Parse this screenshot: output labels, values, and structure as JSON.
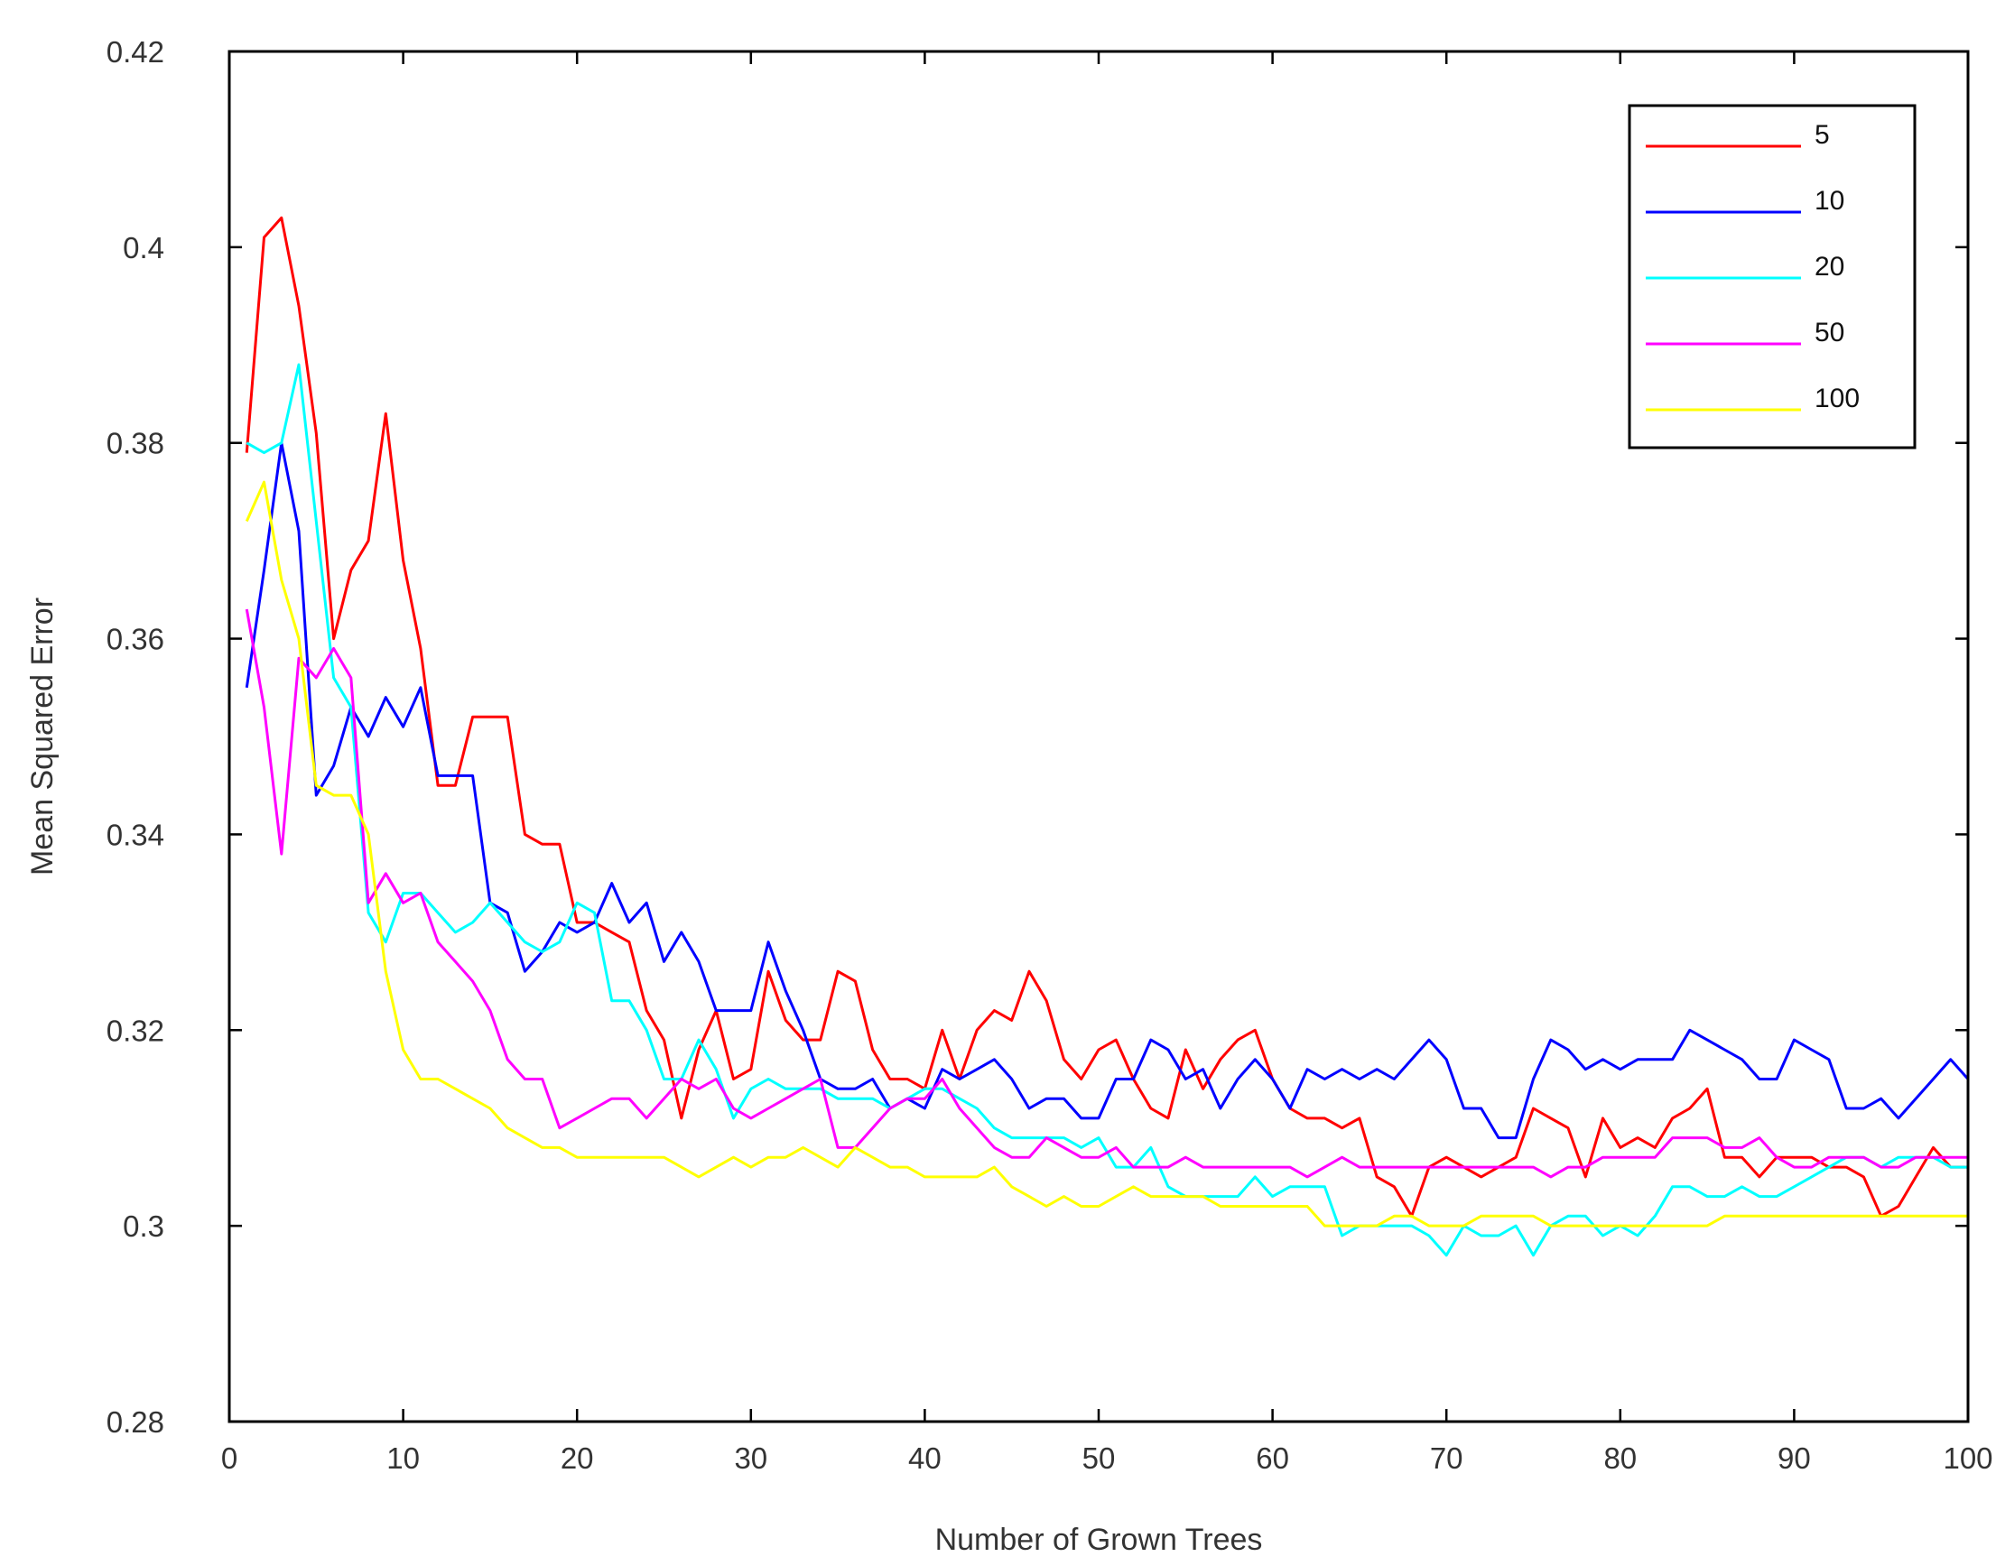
{
  "chart_data": {
    "type": "line",
    "title": "",
    "xlabel": "Number of Grown Trees",
    "ylabel": "Mean Squared Error",
    "xlim": [
      0,
      100
    ],
    "ylim": [
      0.28,
      0.42
    ],
    "x_ticks": [
      0,
      10,
      20,
      30,
      40,
      50,
      60,
      70,
      80,
      90,
      100
    ],
    "x_tick_labels": [
      "0",
      "10",
      "20",
      "30",
      "40",
      "50",
      "60",
      "70",
      "80",
      "90",
      "100"
    ],
    "y_ticks": [
      0.28,
      0.3,
      0.32,
      0.34,
      0.36,
      0.38,
      0.4,
      0.42
    ],
    "y_tick_labels": [
      "0.28",
      "0.3",
      "0.32",
      "0.34",
      "0.36",
      "0.38",
      "0.4",
      "0.42"
    ],
    "grid": false,
    "legend_position": "top-right",
    "x": [
      1,
      2,
      3,
      4,
      5,
      6,
      7,
      8,
      9,
      10,
      11,
      12,
      13,
      14,
      15,
      16,
      17,
      18,
      19,
      20,
      21,
      22,
      23,
      24,
      25,
      26,
      27,
      28,
      29,
      30,
      31,
      32,
      33,
      34,
      35,
      36,
      37,
      38,
      39,
      40,
      41,
      42,
      43,
      44,
      45,
      46,
      47,
      48,
      49,
      50,
      51,
      52,
      53,
      54,
      55,
      56,
      57,
      58,
      59,
      60,
      61,
      62,
      63,
      64,
      65,
      66,
      67,
      68,
      69,
      70,
      71,
      72,
      73,
      74,
      75,
      76,
      77,
      78,
      79,
      80,
      81,
      82,
      83,
      84,
      85,
      86,
      87,
      88,
      89,
      90,
      91,
      92,
      93,
      94,
      95,
      96,
      97,
      98,
      99,
      100
    ],
    "series": [
      {
        "name": "5",
        "color": "#ff0000",
        "values": [
          0.379,
          0.401,
          0.403,
          0.394,
          0.381,
          0.36,
          0.367,
          0.37,
          0.383,
          0.368,
          0.359,
          0.345,
          0.345,
          0.352,
          0.352,
          0.352,
          0.34,
          0.339,
          0.339,
          0.331,
          0.331,
          0.33,
          0.329,
          0.322,
          0.319,
          0.311,
          0.318,
          0.322,
          0.315,
          0.316,
          0.326,
          0.321,
          0.319,
          0.319,
          0.326,
          0.325,
          0.318,
          0.315,
          0.315,
          0.314,
          0.32,
          0.315,
          0.32,
          0.322,
          0.321,
          0.326,
          0.323,
          0.317,
          0.315,
          0.318,
          0.319,
          0.315,
          0.312,
          0.311,
          0.318,
          0.314,
          0.317,
          0.319,
          0.32,
          0.315,
          0.312,
          0.311,
          0.311,
          0.31,
          0.311,
          0.305,
          0.304,
          0.301,
          0.306,
          0.307,
          0.306,
          0.305,
          0.306,
          0.307,
          0.312,
          0.311,
          0.31,
          0.305,
          0.311,
          0.308,
          0.309,
          0.308,
          0.311,
          0.312,
          0.314,
          0.307,
          0.307,
          0.305,
          0.307,
          0.307,
          0.307,
          0.306,
          0.306,
          0.305,
          0.301,
          0.302,
          0.305,
          0.308,
          0.306,
          0.306
        ]
      },
      {
        "name": "10",
        "color": "#0000ff",
        "values": [
          0.355,
          0.367,
          0.38,
          0.371,
          0.344,
          0.347,
          0.353,
          0.35,
          0.354,
          0.351,
          0.355,
          0.346,
          0.346,
          0.346,
          0.333,
          0.332,
          0.326,
          0.328,
          0.331,
          0.33,
          0.331,
          0.335,
          0.331,
          0.333,
          0.327,
          0.33,
          0.327,
          0.322,
          0.322,
          0.322,
          0.329,
          0.324,
          0.32,
          0.315,
          0.314,
          0.314,
          0.315,
          0.312,
          0.313,
          0.312,
          0.316,
          0.315,
          0.316,
          0.317,
          0.315,
          0.312,
          0.313,
          0.313,
          0.311,
          0.311,
          0.315,
          0.315,
          0.319,
          0.318,
          0.315,
          0.316,
          0.312,
          0.315,
          0.317,
          0.315,
          0.312,
          0.316,
          0.315,
          0.316,
          0.315,
          0.316,
          0.315,
          0.317,
          0.319,
          0.317,
          0.312,
          0.312,
          0.309,
          0.309,
          0.315,
          0.319,
          0.318,
          0.316,
          0.317,
          0.316,
          0.317,
          0.317,
          0.317,
          0.32,
          0.319,
          0.318,
          0.317,
          0.315,
          0.315,
          0.319,
          0.318,
          0.317,
          0.312,
          0.312,
          0.313,
          0.311,
          0.313,
          0.315,
          0.317,
          0.315
        ]
      },
      {
        "name": "20",
        "color": "#00ffff",
        "values": [
          0.38,
          0.379,
          0.38,
          0.388,
          0.372,
          0.356,
          0.353,
          0.332,
          0.329,
          0.334,
          0.334,
          0.332,
          0.33,
          0.331,
          0.333,
          0.331,
          0.329,
          0.328,
          0.329,
          0.333,
          0.332,
          0.323,
          0.323,
          0.32,
          0.315,
          0.315,
          0.319,
          0.316,
          0.311,
          0.314,
          0.315,
          0.314,
          0.314,
          0.314,
          0.313,
          0.313,
          0.313,
          0.312,
          0.313,
          0.314,
          0.314,
          0.313,
          0.312,
          0.31,
          0.309,
          0.309,
          0.309,
          0.309,
          0.308,
          0.309,
          0.306,
          0.306,
          0.308,
          0.304,
          0.303,
          0.303,
          0.303,
          0.303,
          0.305,
          0.303,
          0.304,
          0.304,
          0.304,
          0.299,
          0.3,
          0.3,
          0.3,
          0.3,
          0.299,
          0.297,
          0.3,
          0.299,
          0.299,
          0.3,
          0.297,
          0.3,
          0.301,
          0.301,
          0.299,
          0.3,
          0.299,
          0.301,
          0.304,
          0.304,
          0.303,
          0.303,
          0.304,
          0.303,
          0.303,
          0.304,
          0.305,
          0.306,
          0.307,
          0.307,
          0.306,
          0.307,
          0.307,
          0.307,
          0.306,
          0.306
        ]
      },
      {
        "name": "50",
        "color": "#ff00ff",
        "values": [
          0.363,
          0.353,
          0.338,
          0.358,
          0.356,
          0.359,
          0.356,
          0.333,
          0.336,
          0.333,
          0.334,
          0.329,
          0.327,
          0.325,
          0.322,
          0.317,
          0.315,
          0.315,
          0.31,
          0.311,
          0.312,
          0.313,
          0.313,
          0.311,
          0.313,
          0.315,
          0.314,
          0.315,
          0.312,
          0.311,
          0.312,
          0.313,
          0.314,
          0.315,
          0.308,
          0.308,
          0.31,
          0.312,
          0.313,
          0.313,
          0.315,
          0.312,
          0.31,
          0.308,
          0.307,
          0.307,
          0.309,
          0.308,
          0.307,
          0.307,
          0.308,
          0.306,
          0.306,
          0.306,
          0.307,
          0.306,
          0.306,
          0.306,
          0.306,
          0.306,
          0.306,
          0.305,
          0.306,
          0.307,
          0.306,
          0.306,
          0.306,
          0.306,
          0.306,
          0.306,
          0.306,
          0.306,
          0.306,
          0.306,
          0.306,
          0.305,
          0.306,
          0.306,
          0.307,
          0.307,
          0.307,
          0.307,
          0.309,
          0.309,
          0.309,
          0.308,
          0.308,
          0.309,
          0.307,
          0.306,
          0.306,
          0.307,
          0.307,
          0.307,
          0.306,
          0.306,
          0.307,
          0.307,
          0.307,
          0.307
        ]
      },
      {
        "name": "100",
        "color": "#ffff00",
        "values": [
          0.372,
          0.376,
          0.366,
          0.36,
          0.345,
          0.344,
          0.344,
          0.34,
          0.326,
          0.318,
          0.315,
          0.315,
          0.314,
          0.313,
          0.312,
          0.31,
          0.309,
          0.308,
          0.308,
          0.307,
          0.307,
          0.307,
          0.307,
          0.307,
          0.307,
          0.306,
          0.305,
          0.306,
          0.307,
          0.306,
          0.307,
          0.307,
          0.308,
          0.307,
          0.306,
          0.308,
          0.307,
          0.306,
          0.306,
          0.305,
          0.305,
          0.305,
          0.305,
          0.306,
          0.304,
          0.303,
          0.302,
          0.303,
          0.302,
          0.302,
          0.303,
          0.304,
          0.303,
          0.303,
          0.303,
          0.303,
          0.302,
          0.302,
          0.302,
          0.302,
          0.302,
          0.302,
          0.3,
          0.3,
          0.3,
          0.3,
          0.301,
          0.301,
          0.3,
          0.3,
          0.3,
          0.301,
          0.301,
          0.301,
          0.301,
          0.3,
          0.3,
          0.3,
          0.3,
          0.3,
          0.3,
          0.3,
          0.3,
          0.3,
          0.3,
          0.301,
          0.301,
          0.301,
          0.301,
          0.301,
          0.301,
          0.301,
          0.301,
          0.301,
          0.301,
          0.301,
          0.301,
          0.301,
          0.301,
          0.301
        ]
      }
    ]
  }
}
